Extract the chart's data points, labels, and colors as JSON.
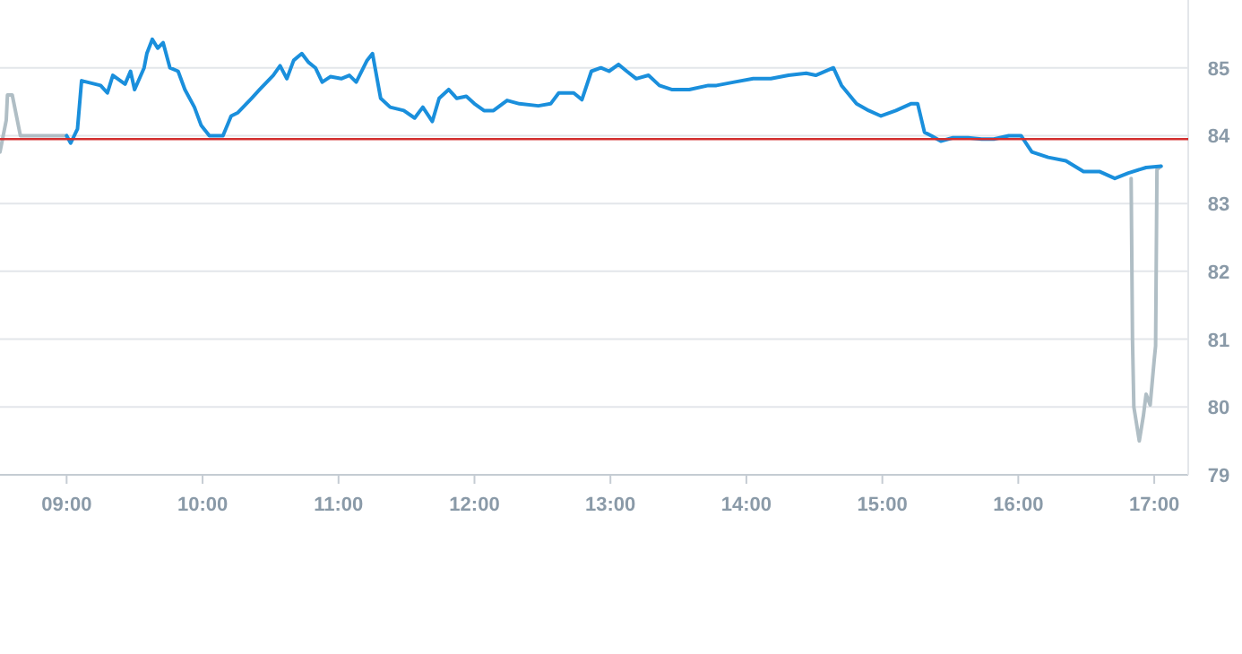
{
  "chart_data": {
    "type": "line",
    "xlim": [
      8.51,
      17.25
    ],
    "ylim": [
      79,
      86
    ],
    "xticks": [
      {
        "value": 9,
        "label": "09:00"
      },
      {
        "value": 10,
        "label": "10:00"
      },
      {
        "value": 11,
        "label": "11:00"
      },
      {
        "value": 12,
        "label": "12:00"
      },
      {
        "value": 13,
        "label": "13:00"
      },
      {
        "value": 14,
        "label": "14:00"
      },
      {
        "value": 15,
        "label": "15:00"
      },
      {
        "value": 16,
        "label": "16:00"
      },
      {
        "value": 17,
        "label": "17:00"
      }
    ],
    "yticks": [
      79,
      80,
      81,
      82,
      83,
      84,
      85
    ],
    "grid": "y",
    "marker": "none",
    "line_style": "solid",
    "ref_lines": [
      {
        "axis": "y",
        "value": 83.95,
        "color": "#d32f2f"
      }
    ],
    "series": [
      {
        "color": "#b0bec5",
        "x": [
          8.51,
          8.556,
          8.565,
          8.6,
          8.66,
          9.0
        ],
        "values": [
          83.76,
          84.23,
          84.6,
          84.6,
          84.0,
          84.0
        ]
      },
      {
        "color": "#b0bec5",
        "x": [
          16.83,
          16.84,
          16.85,
          16.89,
          16.92,
          16.94,
          16.97,
          17.0,
          17.01,
          17.02,
          17.05
        ],
        "values": [
          83.37,
          81.0,
          80.0,
          79.5,
          79.87,
          80.19,
          80.03,
          80.7,
          80.9,
          83.5,
          83.55
        ]
      },
      {
        "color": "#1a8fdc",
        "x": [
          9.0,
          9.03,
          9.08,
          9.11,
          9.25,
          9.3,
          9.34,
          9.43,
          9.47,
          9.5,
          9.57,
          9.59,
          9.63,
          9.67,
          9.71,
          9.76,
          9.82,
          9.87,
          9.94,
          9.99,
          10.05,
          10.15,
          10.21,
          10.26,
          10.36,
          10.42,
          10.52,
          10.57,
          10.62,
          10.67,
          10.73,
          10.78,
          10.83,
          10.88,
          10.94,
          11.02,
          11.08,
          11.13,
          11.21,
          11.25,
          11.31,
          11.38,
          11.48,
          11.56,
          11.62,
          11.69,
          11.74,
          11.81,
          11.87,
          11.94,
          12.0,
          12.07,
          12.14,
          12.24,
          12.33,
          12.47,
          12.56,
          12.62,
          12.73,
          12.79,
          12.86,
          12.93,
          12.99,
          13.06,
          13.12,
          13.19,
          13.28,
          13.36,
          13.45,
          13.58,
          13.72,
          13.78,
          13.91,
          14.05,
          14.18,
          14.31,
          14.44,
          14.51,
          14.64,
          14.7,
          14.81,
          14.9,
          14.99,
          15.1,
          15.21,
          15.26,
          15.31,
          15.36,
          15.43,
          15.52,
          15.63,
          15.73,
          15.82,
          15.93,
          16.02,
          16.1,
          16.22,
          16.35,
          16.48,
          16.6,
          16.71,
          16.81,
          16.94,
          17.05
        ],
        "values": [
          84.0,
          83.89,
          84.1,
          84.81,
          84.74,
          84.63,
          84.89,
          84.76,
          84.95,
          84.68,
          85.0,
          85.21,
          85.42,
          85.29,
          85.37,
          85.0,
          84.95,
          84.68,
          84.42,
          84.15,
          84.0,
          84.0,
          84.29,
          84.34,
          84.55,
          84.68,
          84.89,
          85.03,
          84.84,
          85.11,
          85.21,
          85.08,
          85.0,
          84.79,
          84.87,
          84.84,
          84.89,
          84.79,
          85.11,
          85.21,
          84.55,
          84.42,
          84.37,
          84.26,
          84.42,
          84.21,
          84.55,
          84.68,
          84.55,
          84.58,
          84.47,
          84.37,
          84.37,
          84.52,
          84.47,
          84.44,
          84.47,
          84.63,
          84.63,
          84.53,
          84.95,
          85.0,
          84.95,
          85.05,
          84.95,
          84.84,
          84.89,
          84.74,
          84.68,
          84.68,
          84.74,
          84.74,
          84.79,
          84.84,
          84.84,
          84.89,
          84.92,
          84.89,
          85.0,
          84.74,
          84.47,
          84.37,
          84.29,
          84.37,
          84.47,
          84.47,
          84.05,
          84.0,
          83.92,
          83.97,
          83.97,
          83.95,
          83.95,
          84.0,
          84.0,
          83.76,
          83.68,
          83.63,
          83.47,
          83.47,
          83.37,
          83.45,
          83.53,
          83.55
        ]
      }
    ]
  }
}
